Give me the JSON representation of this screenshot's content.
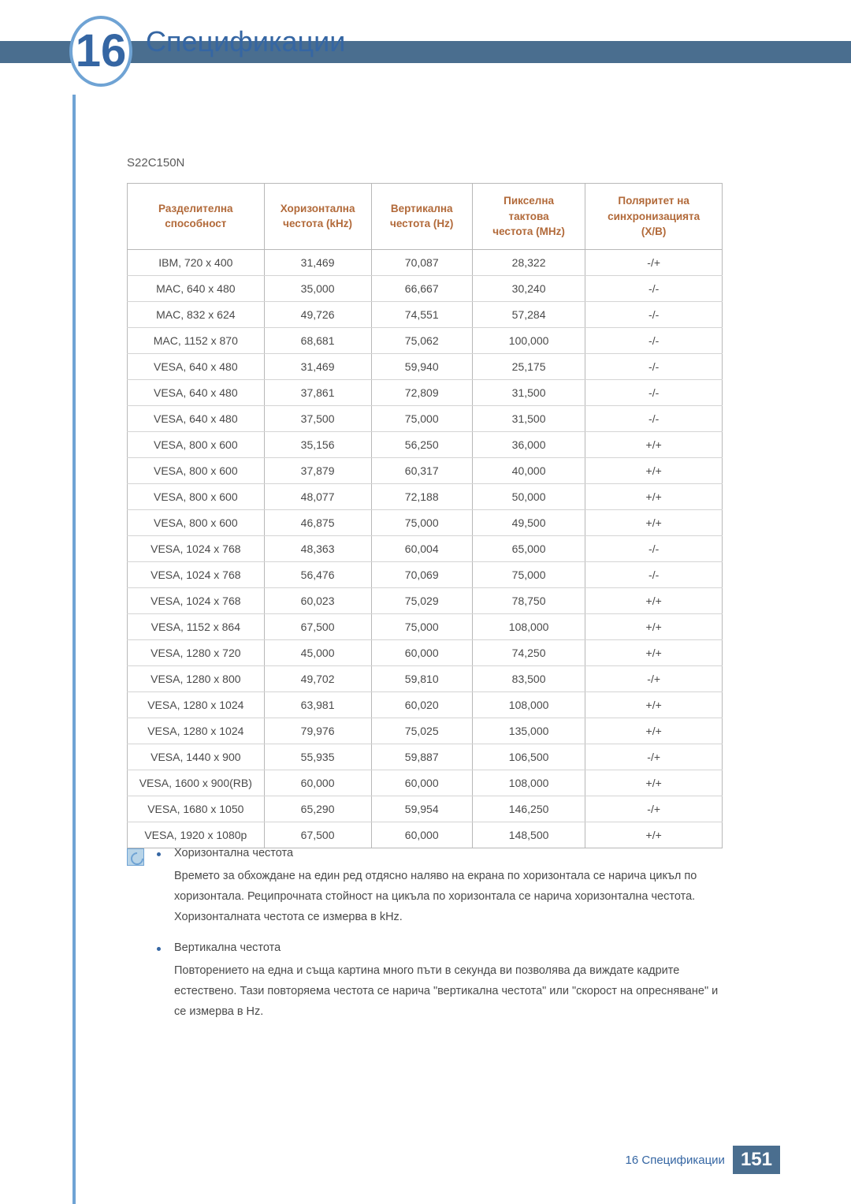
{
  "chapter": {
    "number": "16",
    "title": "Спецификации"
  },
  "model": "S22C150N",
  "table": {
    "columns": [
      "Разделителна способност",
      "Хоризонтална честота (kHz)",
      "Вертикална честота (Hz)",
      "Пикселна тактова честота (MHz)",
      "Поляритет на синхронизацията (Х/В)"
    ],
    "rows": [
      [
        "IBM, 720 x 400",
        "31,469",
        "70,087",
        "28,322",
        "-/+"
      ],
      [
        "MAC, 640 x 480",
        "35,000",
        "66,667",
        "30,240",
        "-/-"
      ],
      [
        "MAC, 832 x 624",
        "49,726",
        "74,551",
        "57,284",
        "-/-"
      ],
      [
        "MAC, 1152 x 870",
        "68,681",
        "75,062",
        "100,000",
        "-/-"
      ],
      [
        "VESA, 640 x 480",
        "31,469",
        "59,940",
        "25,175",
        "-/-"
      ],
      [
        "VESA, 640 x 480",
        "37,861",
        "72,809",
        "31,500",
        "-/-"
      ],
      [
        "VESA, 640 x 480",
        "37,500",
        "75,000",
        "31,500",
        "-/-"
      ],
      [
        "VESA, 800 x 600",
        "35,156",
        "56,250",
        "36,000",
        "+/+"
      ],
      [
        "VESA, 800 x 600",
        "37,879",
        "60,317",
        "40,000",
        "+/+"
      ],
      [
        "VESA, 800 x 600",
        "48,077",
        "72,188",
        "50,000",
        "+/+"
      ],
      [
        "VESA, 800 x 600",
        "46,875",
        "75,000",
        "49,500",
        "+/+"
      ],
      [
        "VESA, 1024 x 768",
        "48,363",
        "60,004",
        "65,000",
        "-/-"
      ],
      [
        "VESA, 1024 x 768",
        "56,476",
        "70,069",
        "75,000",
        "-/-"
      ],
      [
        "VESA, 1024 x 768",
        "60,023",
        "75,029",
        "78,750",
        "+/+"
      ],
      [
        "VESA, 1152 x 864",
        "67,500",
        "75,000",
        "108,000",
        "+/+"
      ],
      [
        "VESA, 1280 x 720",
        "45,000",
        "60,000",
        "74,250",
        "+/+"
      ],
      [
        "VESA, 1280 x 800",
        "49,702",
        "59,810",
        "83,500",
        "-/+"
      ],
      [
        "VESA, 1280 x 1024",
        "63,981",
        "60,020",
        "108,000",
        "+/+"
      ],
      [
        "VESA, 1280 x 1024",
        "79,976",
        "75,025",
        "135,000",
        "+/+"
      ],
      [
        "VESA, 1440 x 900",
        "55,935",
        "59,887",
        "106,500",
        "-/+"
      ],
      [
        "VESA, 1600 x 900(RB)",
        "60,000",
        "60,000",
        "108,000",
        "+/+"
      ],
      [
        "VESA, 1680 x 1050",
        "65,290",
        "59,954",
        "146,250",
        "-/+"
      ],
      [
        "VESA, 1920 x 1080p",
        "67,500",
        "60,000",
        "148,500",
        "+/+"
      ]
    ]
  },
  "notes": [
    {
      "title": "Хоризонтална честота",
      "body": "Времето за обхождане на един ред отдясно наляво на екрана по хоризонтала се нарича цикъл по хоризонтала. Реципрочната стойност на цикъла по хоризонтала се нарича хоризонтална честота. Хоризонталната честота се измерва в kHz."
    },
    {
      "title": "Вертикална честота",
      "body": "Повторението на една и съща картина много пъти в секунда ви позволява да виждате кадрите естествено. Тази повторяема честота се нарича \"вертикална честота\" или \"скорост на опресняване\" и се измерва в Hz."
    }
  ],
  "footer": {
    "label": "16 Спецификации",
    "page": "151"
  },
  "colors": {
    "accent_blue": "#3566a3",
    "header_bar": "#4a6e8f",
    "table_header_text": "#b26a3a",
    "border": "#b8b8b8"
  }
}
